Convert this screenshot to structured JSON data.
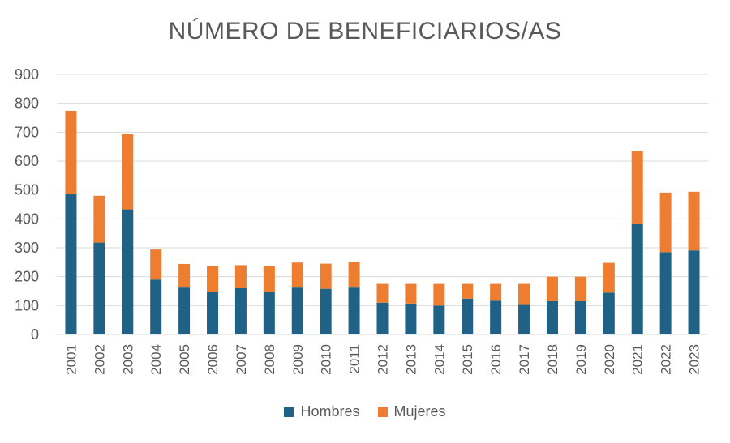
{
  "chart_data": {
    "type": "bar",
    "stacked": true,
    "title": "NÚMERO DE BENEFICIARIOS/AS",
    "categories": [
      "2001",
      "2002",
      "2003",
      "2004",
      "2005",
      "2006",
      "2007",
      "2008",
      "2009",
      "2010",
      "2011",
      "2012",
      "2013",
      "2014",
      "2015",
      "2016",
      "2017",
      "2018",
      "2019",
      "2020",
      "2021",
      "2022",
      "2023"
    ],
    "series": [
      {
        "name": "Hombres",
        "color": "#1f6286",
        "values": [
          485,
          318,
          433,
          190,
          165,
          148,
          162,
          148,
          165,
          158,
          165,
          110,
          107,
          100,
          124,
          117,
          105,
          115,
          115,
          145,
          384,
          285,
          291
        ]
      },
      {
        "name": "Mujeres",
        "color": "#ed7d31",
        "values": [
          289,
          162,
          260,
          104,
          79,
          90,
          78,
          88,
          84,
          87,
          86,
          65,
          68,
          75,
          51,
          58,
          70,
          85,
          85,
          103,
          251,
          206,
          203
        ]
      }
    ],
    "ylim": [
      0,
      900
    ],
    "yticks": [
      0,
      100,
      200,
      300,
      400,
      500,
      600,
      700,
      800,
      900
    ],
    "grid": true,
    "legend": "bottom",
    "xlabel": "",
    "ylabel": ""
  }
}
